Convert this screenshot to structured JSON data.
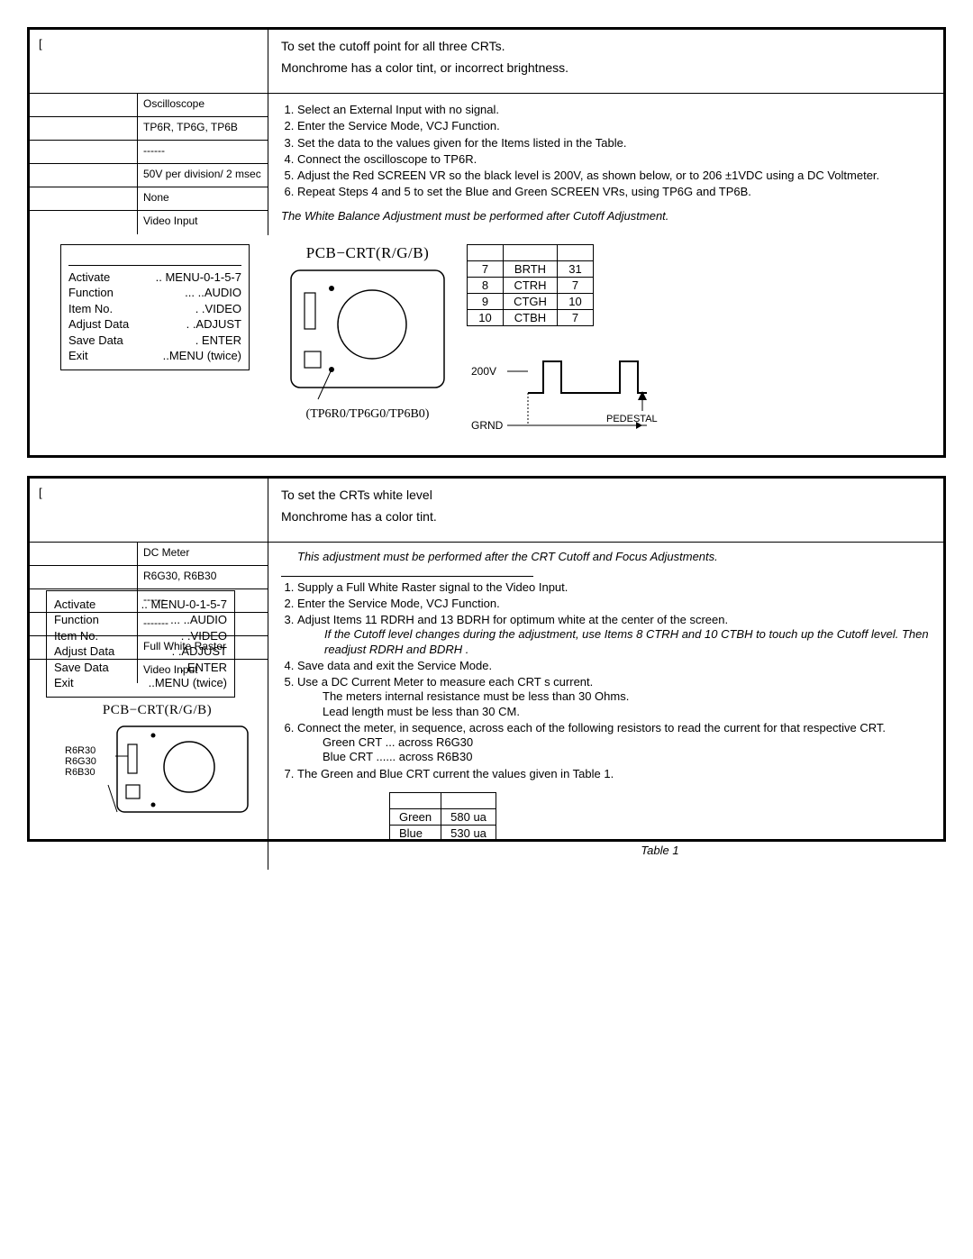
{
  "section1": {
    "bracket": "[",
    "goal": "To set the cutoff point for all three CRTs.",
    "symptom": "Monchrome has a color tint, or incorrect brightness.",
    "params": [
      {
        "label": "",
        "value": "Oscilloscope"
      },
      {
        "label": "",
        "value": "TP6R, TP6G, TP6B"
      },
      {
        "label": "",
        "value": "------"
      },
      {
        "label": "",
        "value": "50V per division/ 2 msec"
      },
      {
        "label": "",
        "value": "None"
      },
      {
        "label": "",
        "value": "Video Input"
      }
    ],
    "steps": [
      "Select an External Input with no signal.",
      "Enter the Service Mode, VCJ Function.",
      "Set the data to the values given for the Items listed in the Table.",
      "Connect the oscilloscope to TP6R.",
      "Adjust the Red SCREEN VR so the black level is 200V, as shown below, or to 206 ±1VDC using a DC Voltmeter.",
      "Repeat Steps 4 and 5 to set the Blue and Green SCREEN VRs, using TP6G and TP6B."
    ],
    "note": "The White Balance Adjustment must be performed after Cutoff Adjustment.",
    "service": {
      "title": "",
      "rows": [
        {
          "l": "Activate",
          "r": ".. MENU-0-1-5-7"
        },
        {
          "l": "Function",
          "r": "...          ..AUDIO"
        },
        {
          "l": "Item No.",
          "r": ".        .VIDEO"
        },
        {
          "l": "Adjust Data",
          "r": ".     .ADJUST"
        },
        {
          "l": "Save Data",
          "r": ".          ENTER"
        },
        {
          "l": "Exit",
          "r": "..MENU (twice)"
        }
      ]
    },
    "pcb_title": "PCB−CRT(R/G/B)",
    "pcb_caption": "(TP6R0/TP6G0/TP6B0)",
    "data_table": {
      "header": [
        "",
        "",
        ""
      ],
      "rows": [
        [
          "7",
          "BRTH",
          "31"
        ],
        [
          "8",
          "CTRH",
          "7"
        ],
        [
          "9",
          "CTGH",
          "10"
        ],
        [
          "10",
          "CTBH",
          "7"
        ]
      ]
    },
    "wave": {
      "v200": "200V",
      "grnd": "GRND",
      "pedestal": "PEDESTAL"
    }
  },
  "section2": {
    "bracket": "[",
    "goal": "To set the CRTs white level",
    "symptom": "Monchrome has a color tint.",
    "params": [
      {
        "label": "",
        "value": "DC Meter"
      },
      {
        "label": "",
        "value": "R6G30, R6B30"
      },
      {
        "label": "",
        "value": "------"
      },
      {
        "label": "",
        "value": "-------"
      },
      {
        "label": "",
        "value": "Full White Raster"
      },
      {
        "label": "",
        "value": "Video Input"
      }
    ],
    "note_top": "This adjustment must be performed after the CRT Cutoff and Focus Adjustments.",
    "steps": [
      "Supply a Full White Raster signal to the Video Input.",
      "Enter the Service Mode, VCJ Function.",
      "Adjust Items  11 RDRH  and  13 BDRH   for optimum white at the center of the screen.",
      "Save data and exit the Service Mode.",
      "Use a DC Current Meter to measure each CRT s current.",
      "Connect the meter, in sequence, across each of the following resistors to read the current for that respective CRT.",
      "The Green and Blue CRT current                                     the values given in Table 1."
    ],
    "step3_note": "If the Cutoff level changes during the adjustment, use Items  8 CTRH  and  10 CTBH  to touch up the Cutoff level. Then readjust  RDRH  and  BDRH .",
    "step5_sub": [
      "The meters internal resistance must be less than 30 Ohms.",
      "Lead length must be less than 30 CM."
    ],
    "step6_sub": [
      "Green CRT ... across R6G30",
      "Blue CRT ...... across R6B30"
    ],
    "service": {
      "rows": [
        {
          "l": "Activate",
          "r": ".. MENU-0-1-5-7"
        },
        {
          "l": "Function",
          "r": "...          ..AUDIO"
        },
        {
          "l": "Item No.",
          "r": ".        .VIDEO"
        },
        {
          "l": "Adjust Data",
          "r": ".     .ADJUST"
        },
        {
          "l": "Save Data",
          "r": ".          ENTER"
        },
        {
          "l": "Exit",
          "r": "..MENU (twice)"
        }
      ]
    },
    "pcb_title": "PCB−CRT(R/G/B)",
    "pcb_labels": [
      "R6R30",
      "R6G30",
      "R6B30"
    ],
    "table1": {
      "header": [
        "",
        ""
      ],
      "rows": [
        [
          "Green",
          "580 ua"
        ],
        [
          "Blue",
          "530 ua"
        ]
      ],
      "caption": "Table 1"
    }
  }
}
